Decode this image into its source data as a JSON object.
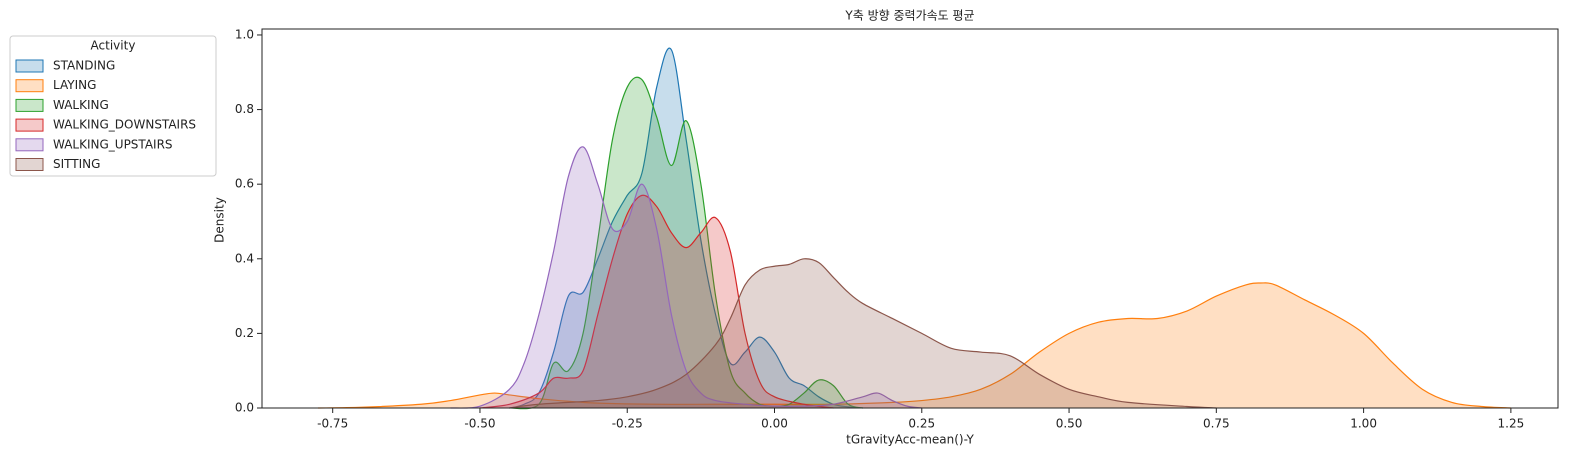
{
  "chart_data": {
    "type": "kde",
    "title": "Y축 방향 중력가속도 평균",
    "x_label": "tGravityAcc-mean()-Y",
    "y_label": "Density",
    "legend_title": "Activity",
    "legend_position": "outside-upper-left",
    "fill": true,
    "xlim": [
      -0.87,
      1.33
    ],
    "ylim": [
      0,
      1.016
    ],
    "xticks": [
      -0.75,
      {
        "value": -0.5,
        "label": "-0.50"
      },
      -0.25,
      {
        "value": 0,
        "label": "0.00"
      },
      0.25,
      {
        "value": 0.5,
        "label": "0.50"
      },
      0.75,
      {
        "value": 1,
        "label": "1.00"
      },
      1.25
    ],
    "yticks": [
      {
        "value": 0,
        "label": "0.0"
      },
      0.2,
      0.4,
      0.6,
      0.8,
      {
        "value": 1,
        "label": "1.0"
      }
    ],
    "series": [
      {
        "name": "STANDING",
        "color": "#1f77b4",
        "x": [
          -0.45,
          -0.425,
          -0.4,
          -0.375,
          -0.35,
          -0.325,
          -0.3,
          -0.275,
          -0.25,
          -0.225,
          -0.2,
          -0.175,
          -0.15,
          -0.125,
          -0.1,
          -0.075,
          -0.05,
          -0.025,
          0,
          0.025,
          0.05,
          0.075,
          0.1,
          0.125,
          0.15
        ],
        "values": [
          0,
          0.01,
          0.04,
          0.15,
          0.3,
          0.31,
          0.4,
          0.5,
          0.57,
          0.63,
          0.86,
          0.96,
          0.72,
          0.45,
          0.25,
          0.12,
          0.15,
          0.19,
          0.15,
          0.08,
          0.06,
          0.03,
          0.01,
          0.003,
          0
        ]
      },
      {
        "name": "LAYING",
        "color": "#ff7f0e",
        "x": [
          -0.775,
          -0.7,
          -0.6,
          -0.55,
          -0.5,
          -0.475,
          -0.45,
          -0.4,
          -0.35,
          -0.3,
          -0.2,
          -0.1,
          0,
          0.1,
          0.2,
          0.25,
          0.3,
          0.35,
          0.4,
          0.45,
          0.5,
          0.55,
          0.6,
          0.65,
          0.7,
          0.75,
          0.8,
          0.825,
          0.85,
          0.9,
          0.95,
          1.0,
          1.05,
          1.1,
          1.15,
          1.2,
          1.25
        ],
        "values": [
          0,
          0.002,
          0.01,
          0.02,
          0.035,
          0.04,
          0.035,
          0.025,
          0.018,
          0.013,
          0.01,
          0.01,
          0.01,
          0.01,
          0.015,
          0.02,
          0.03,
          0.05,
          0.09,
          0.15,
          0.2,
          0.23,
          0.24,
          0.24,
          0.26,
          0.3,
          0.33,
          0.335,
          0.33,
          0.29,
          0.25,
          0.2,
          0.12,
          0.05,
          0.015,
          0.004,
          0
        ]
      },
      {
        "name": "WALKING",
        "color": "#2ca02c",
        "x": [
          -0.45,
          -0.4,
          -0.375,
          -0.35,
          -0.325,
          -0.3,
          -0.275,
          -0.25,
          -0.225,
          -0.2,
          -0.175,
          -0.15,
          -0.125,
          -0.1,
          -0.075,
          -0.05,
          -0.025,
          0,
          0.025,
          0.05,
          0.075,
          0.1,
          0.125,
          0.15
        ],
        "values": [
          0,
          0.01,
          0.12,
          0.1,
          0.2,
          0.45,
          0.72,
          0.86,
          0.88,
          0.78,
          0.65,
          0.77,
          0.6,
          0.3,
          0.1,
          0.04,
          0.01,
          0.005,
          0.01,
          0.04,
          0.075,
          0.06,
          0.01,
          0
        ]
      },
      {
        "name": "WALKING_DOWNSTAIRS",
        "color": "#d62728",
        "x": [
          -0.5,
          -0.45,
          -0.4,
          -0.375,
          -0.35,
          -0.325,
          -0.3,
          -0.275,
          -0.25,
          -0.225,
          -0.2,
          -0.175,
          -0.15,
          -0.125,
          -0.1,
          -0.075,
          -0.05,
          -0.025,
          0,
          0.05,
          0.1
        ],
        "values": [
          0,
          0.01,
          0.04,
          0.08,
          0.08,
          0.1,
          0.25,
          0.4,
          0.52,
          0.57,
          0.54,
          0.47,
          0.43,
          0.47,
          0.51,
          0.42,
          0.2,
          0.07,
          0.03,
          0.01,
          0
        ]
      },
      {
        "name": "WALKING_UPSTAIRS",
        "color": "#9467bd",
        "x": [
          -0.55,
          -0.5,
          -0.45,
          -0.425,
          -0.4,
          -0.375,
          -0.35,
          -0.325,
          -0.3,
          -0.275,
          -0.25,
          -0.225,
          -0.2,
          -0.175,
          -0.15,
          -0.125,
          -0.1,
          -0.05,
          0,
          0.05,
          0.1,
          0.15,
          0.175,
          0.2,
          0.225,
          0.25
        ],
        "values": [
          0,
          0.005,
          0.05,
          0.12,
          0.25,
          0.42,
          0.62,
          0.7,
          0.6,
          0.48,
          0.5,
          0.6,
          0.48,
          0.25,
          0.1,
          0.04,
          0.02,
          0.01,
          0.005,
          0.005,
          0.01,
          0.03,
          0.04,
          0.02,
          0.005,
          0
        ]
      },
      {
        "name": "SITTING",
        "color": "#8c564b",
        "x": [
          -0.45,
          -0.4,
          -0.3,
          -0.25,
          -0.2,
          -0.15,
          -0.1,
          -0.075,
          -0.05,
          -0.025,
          0,
          0.025,
          0.05,
          0.075,
          0.1,
          0.125,
          0.15,
          0.2,
          0.25,
          0.3,
          0.35,
          0.4,
          0.45,
          0.5,
          0.55,
          0.6,
          0.7,
          0.75
        ],
        "values": [
          0,
          0.01,
          0.02,
          0.03,
          0.05,
          0.09,
          0.17,
          0.24,
          0.33,
          0.37,
          0.38,
          0.385,
          0.4,
          0.39,
          0.35,
          0.31,
          0.28,
          0.24,
          0.2,
          0.16,
          0.15,
          0.14,
          0.09,
          0.05,
          0.03,
          0.015,
          0.004,
          0
        ]
      }
    ]
  }
}
